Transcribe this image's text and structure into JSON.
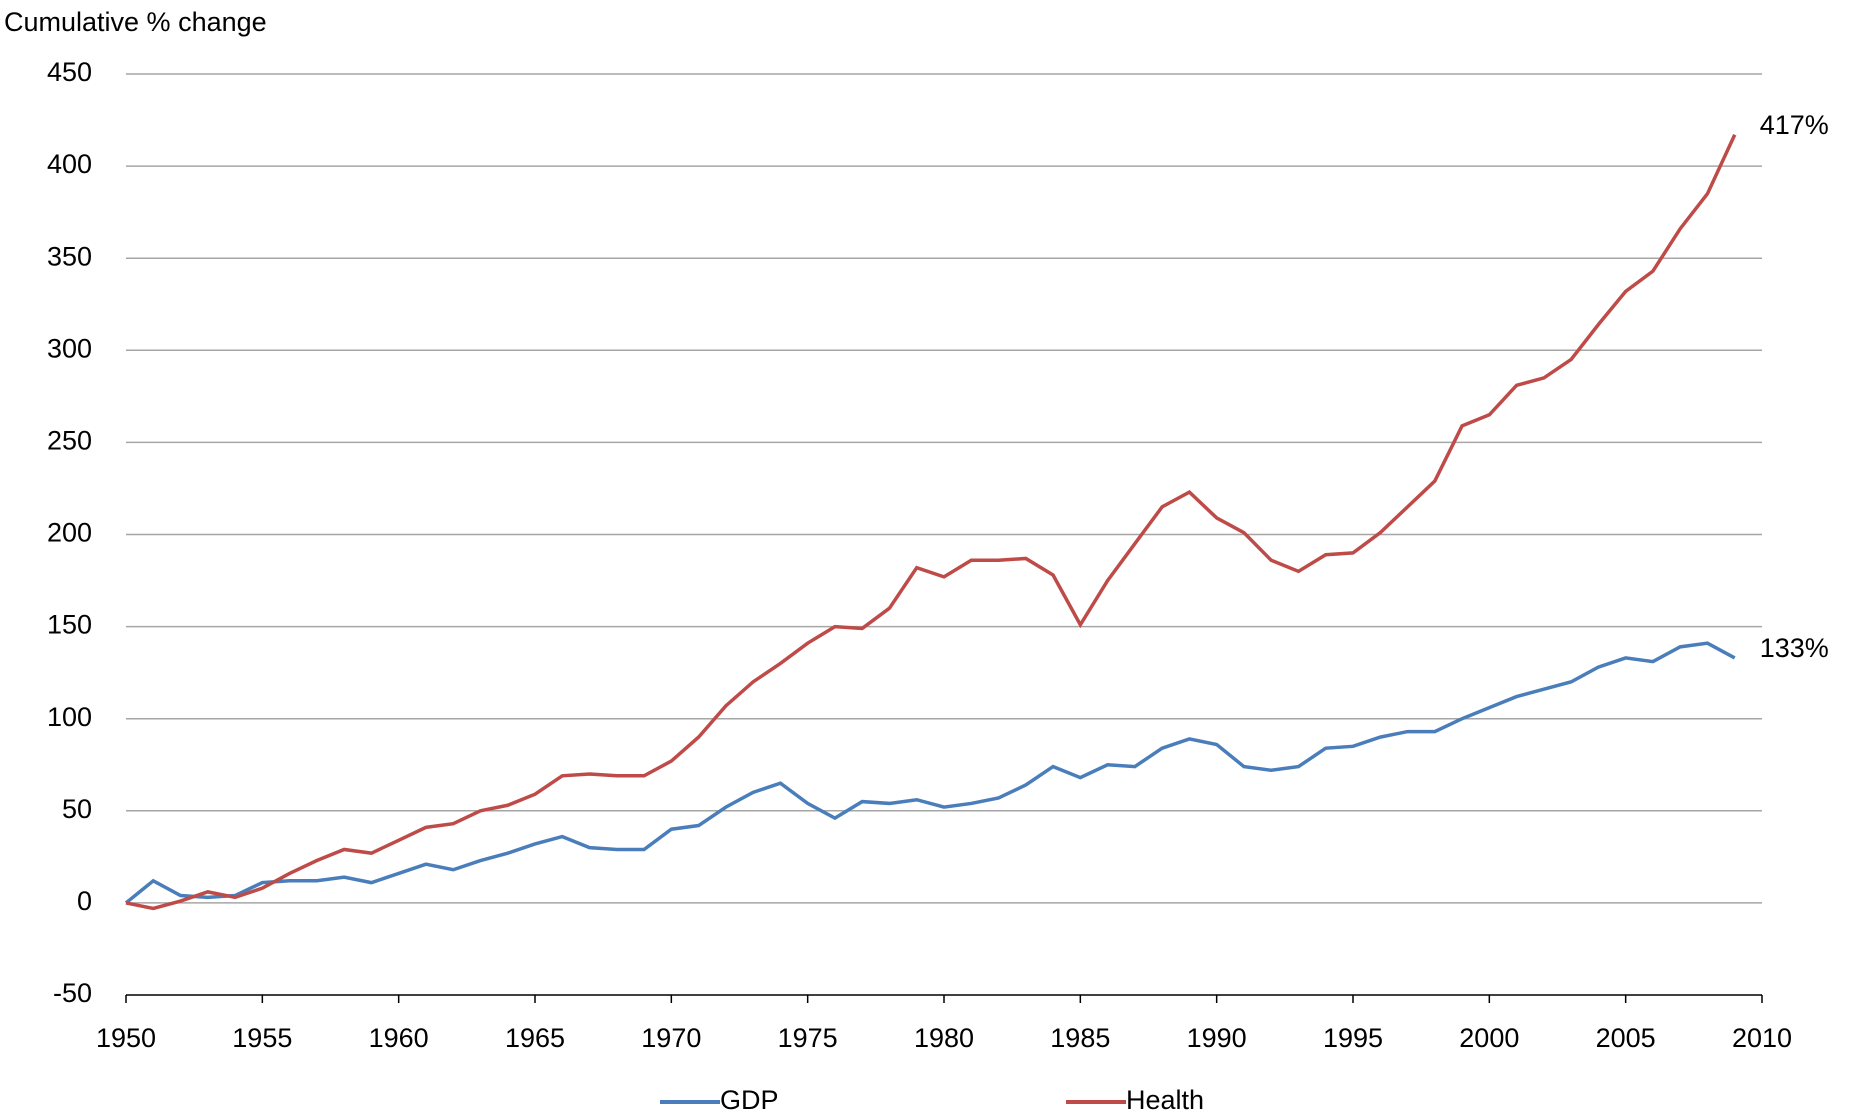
{
  "chart_data": {
    "type": "line",
    "y_label": "Cumulative % change",
    "x": [
      1950,
      1951,
      1952,
      1953,
      1954,
      1955,
      1956,
      1957,
      1958,
      1959,
      1960,
      1961,
      1962,
      1963,
      1964,
      1965,
      1966,
      1967,
      1968,
      1969,
      1970,
      1971,
      1972,
      1973,
      1974,
      1975,
      1976,
      1977,
      1978,
      1979,
      1980,
      1981,
      1982,
      1983,
      1984,
      1985,
      1986,
      1987,
      1988,
      1989,
      1990,
      1991,
      1992,
      1993,
      1994,
      1995,
      1996,
      1997,
      1998,
      1999,
      2000,
      2001,
      2002,
      2003,
      2004,
      2005,
      2006,
      2007,
      2008,
      2009
    ],
    "series": [
      {
        "name": "GDP",
        "color": "#4a7ebb",
        "values": [
          0,
          12,
          4,
          3,
          4,
          11,
          12,
          12,
          14,
          11,
          16,
          21,
          18,
          23,
          27,
          32,
          36,
          30,
          29,
          29,
          40,
          42,
          52,
          60,
          65,
          54,
          46,
          55,
          54,
          56,
          52,
          54,
          57,
          64,
          74,
          68,
          75,
          74,
          84,
          89,
          86,
          74,
          72,
          74,
          84,
          85,
          90,
          93,
          93,
          100,
          106,
          112,
          116,
          120,
          128,
          133,
          131,
          139,
          141,
          133
        ],
        "value_labels": [
          null,
          null,
          null,
          null,
          null,
          null,
          null,
          null,
          null,
          null,
          null,
          null,
          null,
          null,
          null,
          null,
          null,
          null,
          null,
          null,
          null,
          null,
          null,
          null,
          null,
          null,
          null,
          null,
          null,
          null,
          null,
          null,
          null,
          null,
          null,
          null,
          null,
          null,
          null,
          null,
          null,
          null,
          null,
          null,
          null,
          null,
          null,
          null,
          null,
          null,
          null,
          null,
          null,
          null,
          null,
          null,
          null,
          null,
          null,
          "133%"
        ]
      },
      {
        "name": "Health",
        "color": "#be4b48",
        "values": [
          0,
          -3,
          1,
          6,
          3,
          8,
          16,
          23,
          29,
          27,
          34,
          41,
          43,
          50,
          53,
          59,
          69,
          70,
          69,
          69,
          77,
          90,
          107,
          120,
          130,
          141,
          150,
          149,
          160,
          182,
          177,
          186,
          186,
          187,
          178,
          151,
          175,
          195,
          215,
          223,
          209,
          201,
          186,
          180,
          189,
          190,
          201,
          215,
          229,
          259,
          265,
          281,
          285,
          295,
          314,
          332,
          343,
          366,
          385,
          417
        ],
        "value_labels": [
          null,
          null,
          null,
          null,
          null,
          null,
          null,
          null,
          null,
          null,
          null,
          null,
          null,
          null,
          null,
          null,
          null,
          null,
          null,
          null,
          null,
          null,
          null,
          null,
          null,
          null,
          null,
          null,
          null,
          null,
          null,
          null,
          null,
          null,
          null,
          null,
          null,
          null,
          null,
          null,
          null,
          null,
          null,
          null,
          null,
          null,
          null,
          null,
          null,
          null,
          null,
          null,
          null,
          null,
          null,
          null,
          null,
          null,
          null,
          "417%"
        ]
      }
    ],
    "xlim": [
      1950,
      2010
    ],
    "xticks": [
      1950,
      1955,
      1960,
      1965,
      1970,
      1975,
      1980,
      1985,
      1990,
      1995,
      2000,
      2005,
      2010
    ],
    "ylim": [
      -50,
      450
    ],
    "yticks": [
      -50,
      0,
      50,
      100,
      150,
      200,
      250,
      300,
      350,
      400,
      450
    ],
    "grid": true,
    "legend": "bottom"
  }
}
